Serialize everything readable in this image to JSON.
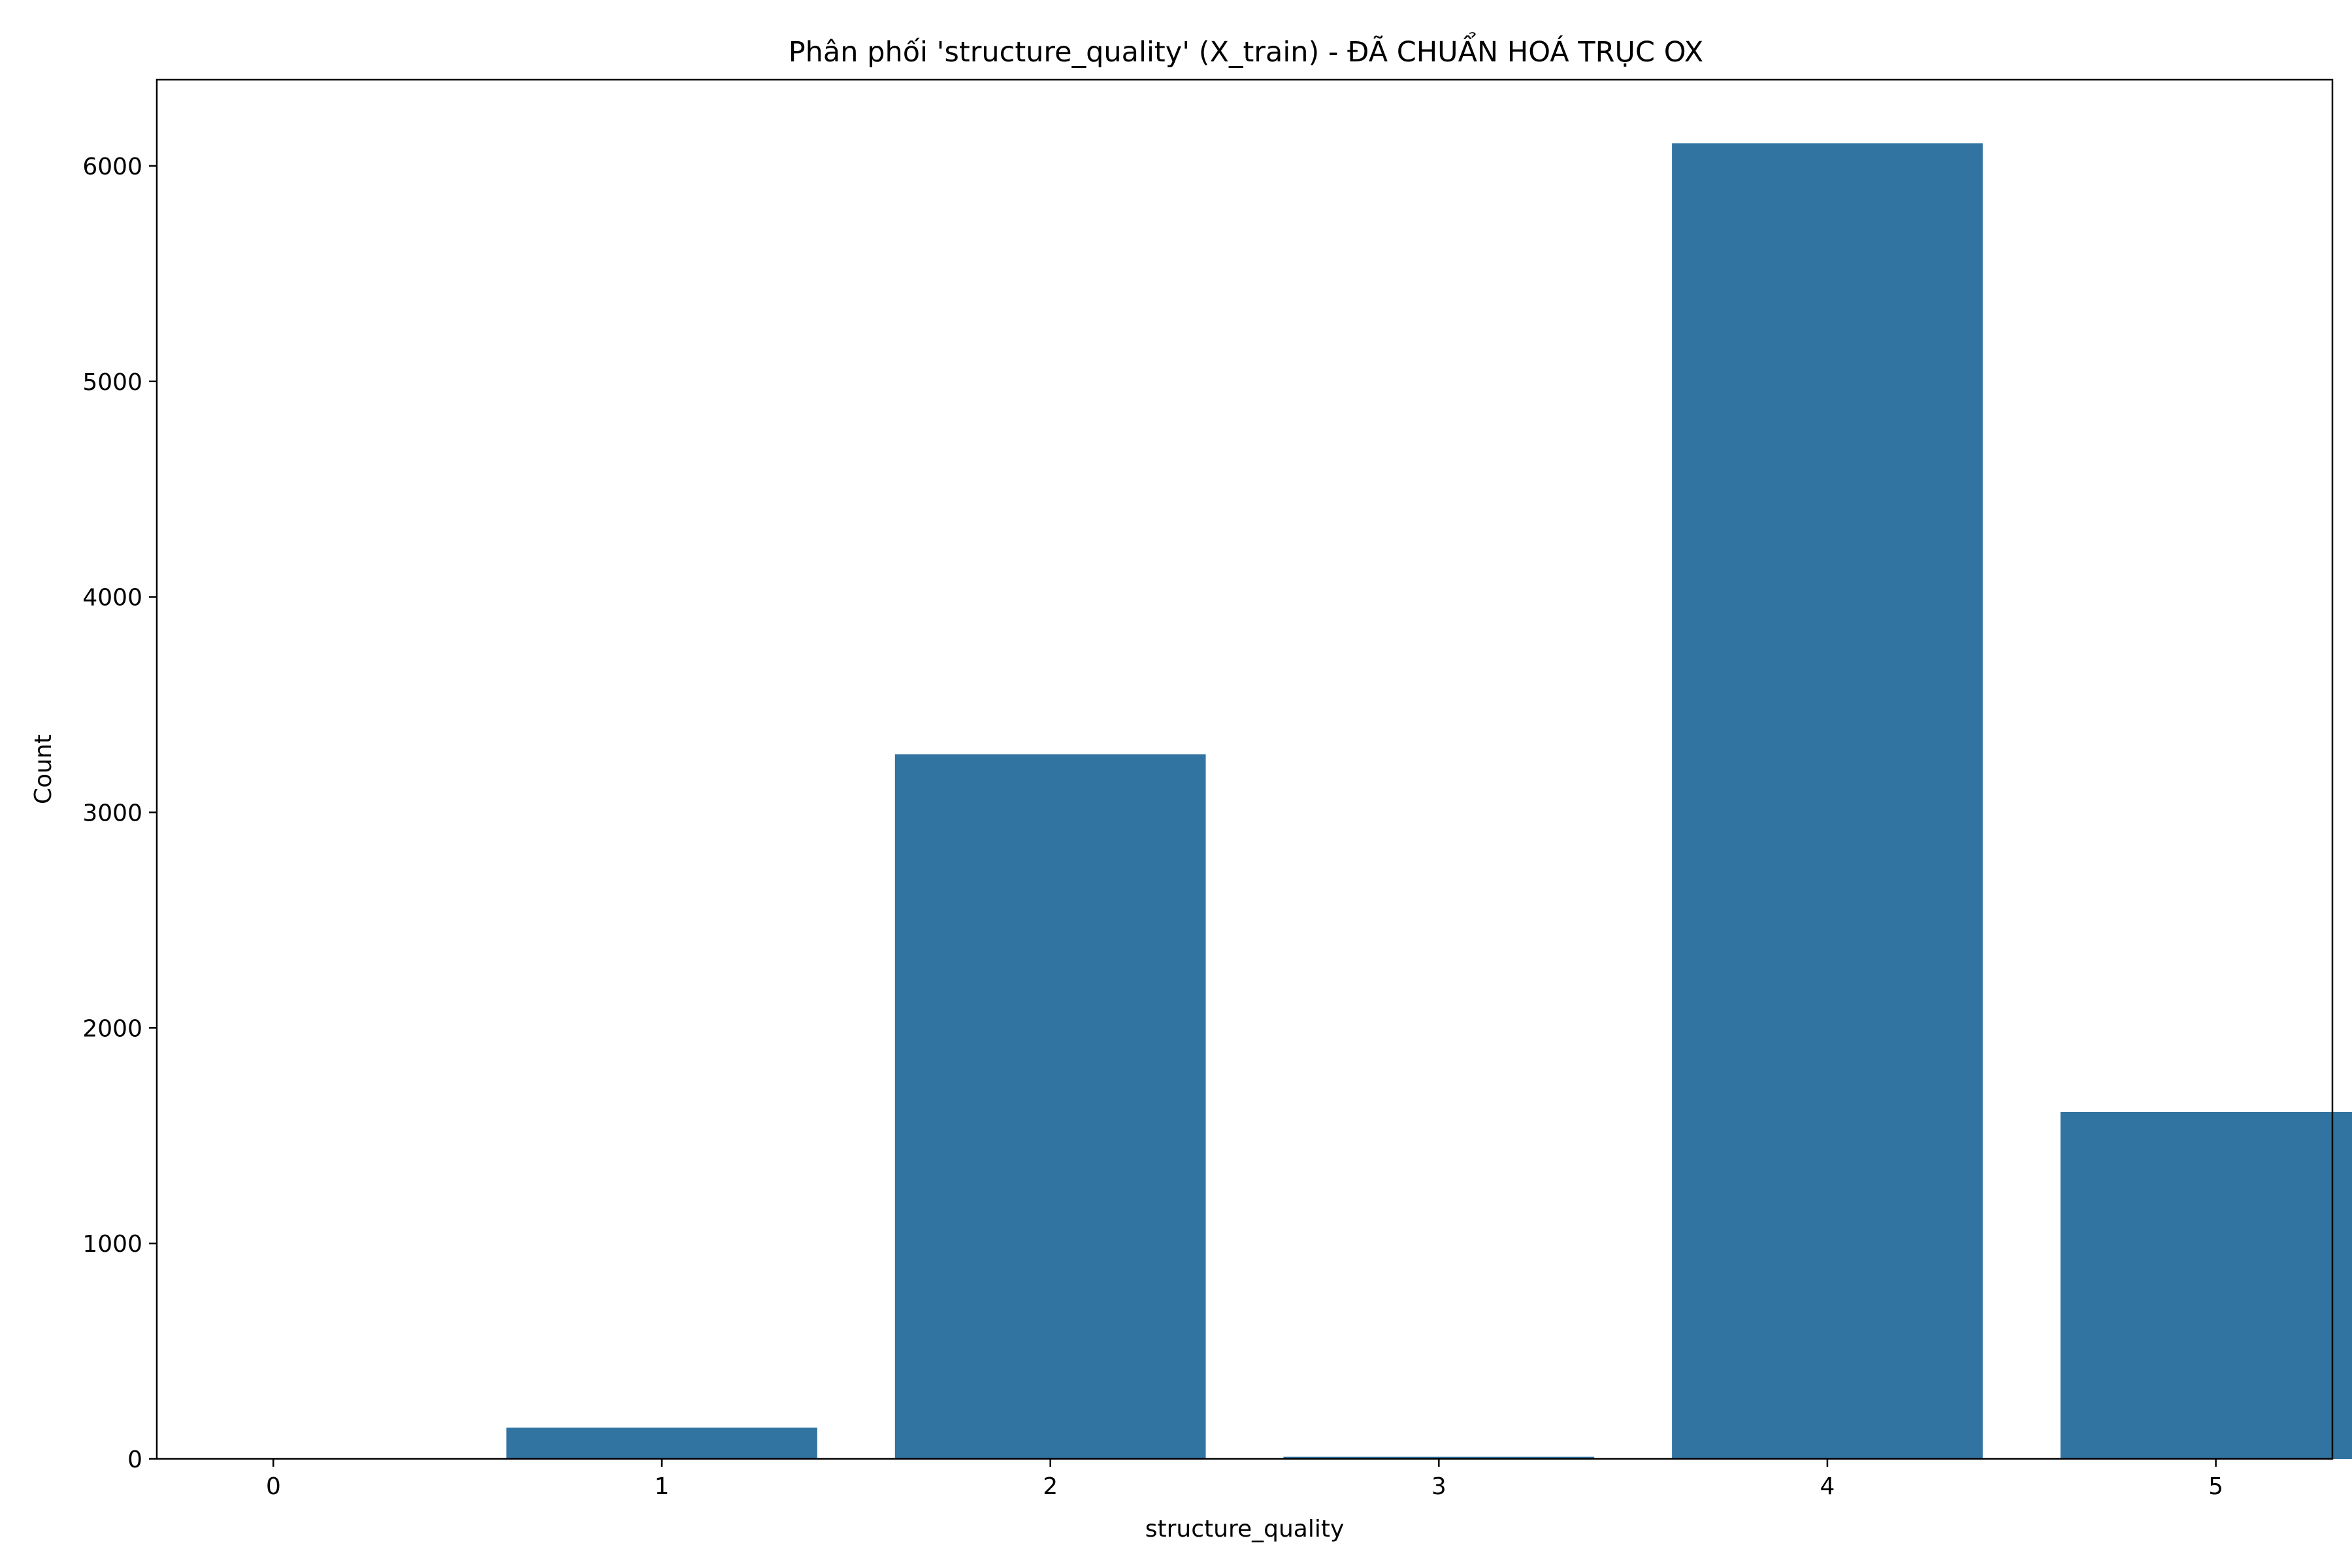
{
  "chart_data": {
    "type": "bar",
    "title": "Phân phối 'structure_quality' (X_train) - ĐÃ CHUẨN HOÁ TRỤC OX",
    "xlabel": "structure_quality",
    "ylabel": "Count",
    "categories": [
      "0",
      "1",
      "2",
      "3",
      "4",
      "5"
    ],
    "values": [
      0,
      145,
      3270,
      10,
      6105,
      1610
    ],
    "ylim": [
      0,
      6400
    ],
    "yticks": [
      "0",
      "1000",
      "2000",
      "3000",
      "4000",
      "5000",
      "6000"
    ],
    "bar_color": "#3274a1",
    "grid": false,
    "legend": "none"
  }
}
